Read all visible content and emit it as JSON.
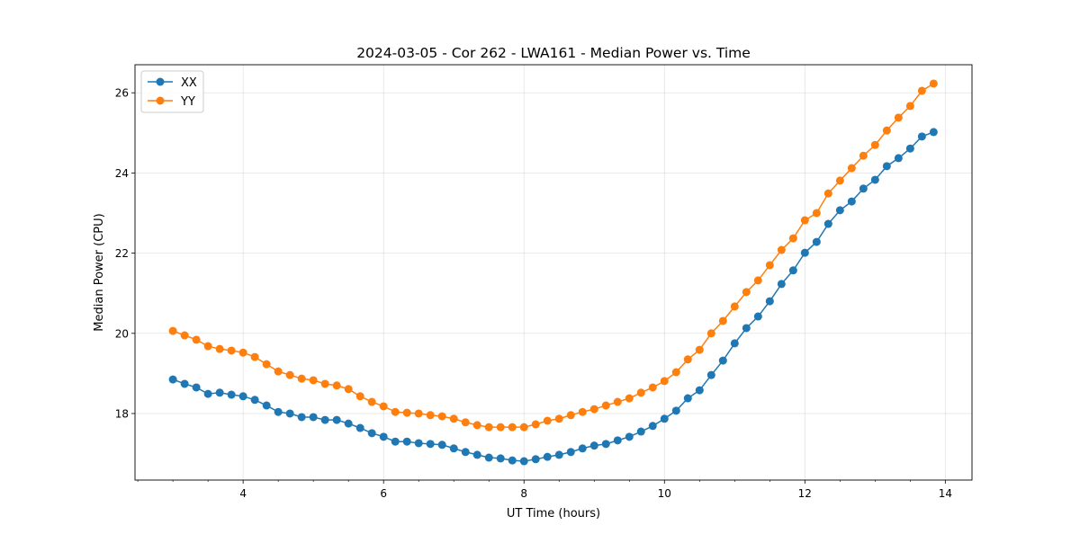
{
  "chart_data": {
    "type": "line",
    "title": "2024-03-05 - Cor 262 - LWA161 - Median Power vs. Time",
    "xlabel": "UT Time (hours)",
    "ylabel": "Median Power (CPU)",
    "xlim": [
      2.46,
      14.38
    ],
    "ylim": [
      16.34,
      26.7
    ],
    "xticks": [
      4,
      6,
      8,
      10,
      12,
      14
    ],
    "yticks": [
      18,
      20,
      22,
      24,
      26
    ],
    "grid": true,
    "legend_position": "top-left",
    "x_start": 3.0,
    "x_step_hours": 0.16667,
    "series": [
      {
        "name": "XX",
        "color": "#1f77b4",
        "values": [
          18.85,
          18.74,
          18.65,
          18.49,
          18.52,
          18.47,
          18.43,
          18.34,
          18.2,
          18.04,
          18.0,
          17.91,
          17.91,
          17.84,
          17.84,
          17.75,
          17.64,
          17.51,
          17.42,
          17.3,
          17.3,
          17.26,
          17.24,
          17.22,
          17.13,
          17.04,
          16.97,
          16.9,
          16.88,
          16.83,
          16.81,
          16.86,
          16.92,
          16.97,
          17.04,
          17.13,
          17.2,
          17.24,
          17.33,
          17.42,
          17.55,
          17.69,
          17.87,
          18.07,
          18.38,
          18.58,
          18.96,
          19.32,
          19.75,
          20.13,
          20.42,
          20.8,
          21.23,
          21.57,
          22.01,
          22.28,
          22.73,
          23.07,
          23.29,
          23.61,
          23.83,
          24.17,
          24.37,
          24.61,
          24.91,
          25.02
        ]
      },
      {
        "name": "YY",
        "color": "#ff7f0e",
        "values": [
          20.06,
          19.95,
          19.84,
          19.68,
          19.61,
          19.57,
          19.52,
          19.41,
          19.23,
          19.05,
          18.96,
          18.87,
          18.83,
          18.74,
          18.7,
          18.61,
          18.43,
          18.29,
          18.18,
          18.04,
          18.02,
          18.0,
          17.96,
          17.93,
          17.87,
          17.78,
          17.71,
          17.66,
          17.66,
          17.66,
          17.66,
          17.73,
          17.82,
          17.87,
          17.96,
          18.04,
          18.11,
          18.2,
          18.29,
          18.38,
          18.52,
          18.65,
          18.81,
          19.03,
          19.35,
          19.59,
          20.0,
          20.31,
          20.67,
          21.03,
          21.32,
          21.7,
          22.08,
          22.37,
          22.82,
          23.0,
          23.49,
          23.81,
          24.12,
          24.43,
          24.7,
          25.06,
          25.38,
          25.67,
          26.05,
          26.23
        ]
      }
    ]
  }
}
